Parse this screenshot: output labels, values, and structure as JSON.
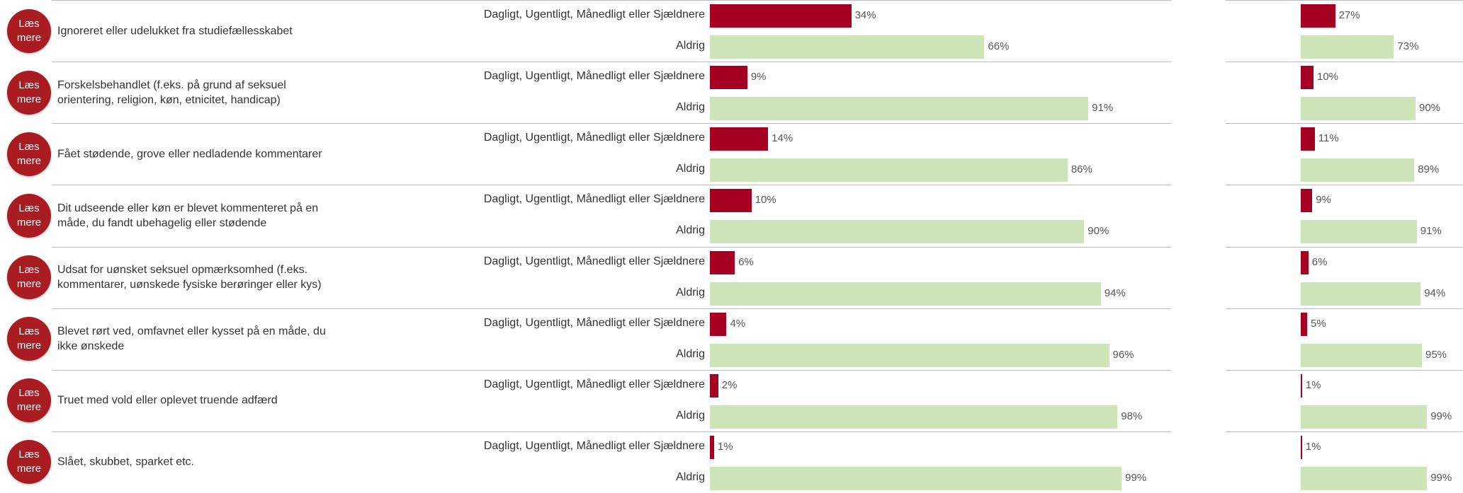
{
  "chart_data": {
    "type": "bar",
    "colors": [
      "#a50021",
      "#cde3b8"
    ],
    "rows": [
      {
        "button": "Læs mere",
        "label": "Ignoreret eller udelukket fra studiefællesskabet",
        "groups": [
          {
            "category": "Dagligt, Ugentligt, Månedligt eller Sjældnere",
            "values": [
              34,
              27
            ],
            "value_labels": [
              "34%",
              "27%"
            ]
          },
          {
            "category": "Aldrig",
            "values": [
              66,
              73
            ],
            "value_labels": [
              "66%",
              "73%"
            ]
          }
        ]
      },
      {
        "button": "Læs mere",
        "label": "Forskelsbehandlet (f.eks. på grund af seksuel orientering, religion, køn, etnicitet, handicap)",
        "groups": [
          {
            "category": "Dagligt, Ugentligt, Månedligt eller Sjældnere",
            "values": [
              9,
              10
            ],
            "value_labels": [
              "9%",
              "10%"
            ]
          },
          {
            "category": "Aldrig",
            "values": [
              91,
              90
            ],
            "value_labels": [
              "91%",
              "90%"
            ]
          }
        ]
      },
      {
        "button": "Læs mere",
        "label": "Fået stødende, grove eller nedladende kommentarer",
        "groups": [
          {
            "category": "Dagligt, Ugentligt, Månedligt eller Sjældnere",
            "values": [
              14,
              11
            ],
            "value_labels": [
              "14%",
              "11%"
            ]
          },
          {
            "category": "Aldrig",
            "values": [
              86,
              89
            ],
            "value_labels": [
              "86%",
              "89%"
            ]
          }
        ]
      },
      {
        "button": "Læs mere",
        "label": "Dit udseende eller køn er blevet kommenteret på en måde, du fandt ubehagelig eller stødende",
        "groups": [
          {
            "category": "Dagligt, Ugentligt, Månedligt eller Sjældnere",
            "values": [
              10,
              9
            ],
            "value_labels": [
              "10%",
              "9%"
            ]
          },
          {
            "category": "Aldrig",
            "values": [
              90,
              91
            ],
            "value_labels": [
              "90%",
              "91%"
            ]
          }
        ]
      },
      {
        "button": "Læs mere",
        "label": "Udsat for uønsket seksuel opmærksomhed (f.eks. kommentarer, uønskede fysiske berøringer eller kys)",
        "groups": [
          {
            "category": "Dagligt, Ugentligt, Månedligt eller Sjældnere",
            "values": [
              6,
              6
            ],
            "value_labels": [
              "6%",
              "6%"
            ]
          },
          {
            "category": "Aldrig",
            "values": [
              94,
              94
            ],
            "value_labels": [
              "94%",
              "94%"
            ]
          }
        ]
      },
      {
        "button": "Læs mere",
        "label": "Blevet rørt ved, omfavnet eller kysset på en måde, du ikke ønskede",
        "groups": [
          {
            "category": "Dagligt, Ugentligt, Månedligt eller Sjældnere",
            "values": [
              4,
              5
            ],
            "value_labels": [
              "4%",
              "5%"
            ]
          },
          {
            "category": "Aldrig",
            "values": [
              96,
              95
            ],
            "value_labels": [
              "96%",
              "95%"
            ]
          }
        ]
      },
      {
        "button": "Læs mere",
        "label": "Truet med vold eller oplevet truende adfærd",
        "groups": [
          {
            "category": "Dagligt, Ugentligt, Månedligt eller Sjældnere",
            "values": [
              2,
              1
            ],
            "value_labels": [
              "2%",
              "1%"
            ]
          },
          {
            "category": "Aldrig",
            "values": [
              98,
              99
            ],
            "value_labels": [
              "98%",
              "99%"
            ]
          }
        ]
      },
      {
        "button": "Læs mere",
        "label": "Slået, skubbet, sparket etc.",
        "groups": [
          {
            "category": "Dagligt, Ugentligt, Månedligt eller Sjældnere",
            "values": [
              1,
              1
            ],
            "value_labels": [
              "1%",
              "1%"
            ]
          },
          {
            "category": "Aldrig",
            "values": [
              99,
              99
            ],
            "value_labels": [
              "99%",
              "99%"
            ]
          }
        ]
      }
    ]
  }
}
